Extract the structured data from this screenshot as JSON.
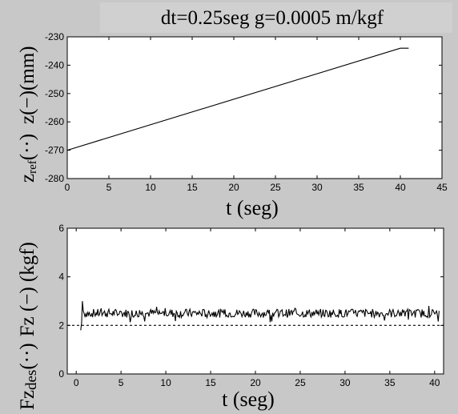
{
  "figure": {
    "header": "dt=0.25seg   g=0.0005 m/kgf"
  },
  "chart_data": [
    {
      "type": "line",
      "ylabel_main": "z(",
      "ylabel_main_mark": "−",
      "ylabel_main_unit": ")(mm)",
      "ylabel_ref": "z",
      "ylabel_ref_sub": "ref",
      "ylabel_ref_mark": "(··)",
      "xlabel": "t (seg)",
      "xlim": [
        0,
        45
      ],
      "ylim": [
        -280,
        -230
      ],
      "xticks": [
        "0",
        "5",
        "10",
        "15",
        "20",
        "25",
        "30",
        "35",
        "40",
        "45"
      ],
      "yticks": [
        "-230",
        "-240",
        "-250",
        "-260",
        "-270",
        "-280"
      ],
      "grid": false,
      "series": [
        {
          "style": "solid",
          "x": [
            0,
            40,
            41
          ],
          "y": [
            -270,
            -234,
            -234
          ]
        }
      ]
    },
    {
      "type": "line",
      "ylabel_main": "Fz (",
      "ylabel_main_mark": "−",
      "ylabel_main_unit": ") (kgf)",
      "ylabel_ref": "Fz",
      "ylabel_ref_sub": "des",
      "ylabel_ref_mark": "(··)",
      "xlabel": "t (seg)",
      "xlim": [
        -1,
        41
      ],
      "ylim": [
        0,
        6
      ],
      "xticks": [
        "0",
        "5",
        "10",
        "15",
        "20",
        "25",
        "30",
        "35",
        "40"
      ],
      "yticks": [
        "6",
        "4",
        "2",
        "0"
      ],
      "grid": false,
      "series": [
        {
          "style": "dashed",
          "x": [
            -1,
            41
          ],
          "y": [
            2,
            2
          ]
        },
        {
          "style": "solid",
          "noisy": true,
          "base": 2.5,
          "amplitude": 0.18,
          "x_start": 0.5,
          "x_end": 40.5,
          "start_values": [
            1.8,
            2.1,
            3.0,
            2.6
          ]
        }
      ]
    }
  ]
}
